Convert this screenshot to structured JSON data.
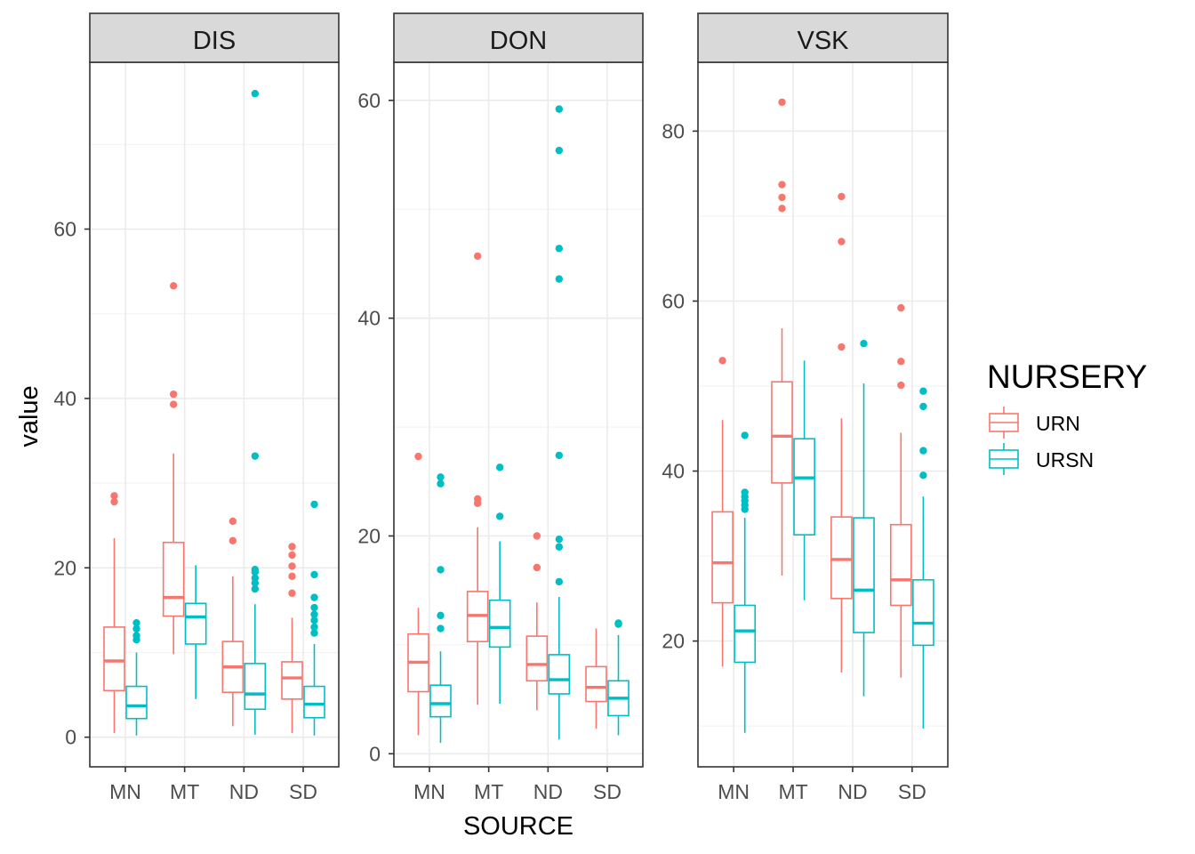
{
  "chart_data": {
    "type": "boxplot",
    "xlabel": "SOURCE",
    "ylabel": "value",
    "categories": [
      "MN",
      "MT",
      "ND",
      "SD"
    ],
    "legend": {
      "title": "NURSERY",
      "position": "right",
      "entries": [
        {
          "name": "URN",
          "color": "#F8766D"
        },
        {
          "name": "URSN",
          "color": "#00BFC4"
        }
      ]
    },
    "grid": true,
    "panels": [
      {
        "title": "DIS",
        "ylim": [
          -3.5,
          79.7
        ],
        "yticks": [
          0,
          20,
          40,
          60
        ],
        "yticklabels": [
          "0",
          "20",
          "40",
          "60"
        ],
        "boxes": [
          {
            "category": "MN",
            "group": "URN",
            "min": 0.5,
            "q1": 5.5,
            "median": 9.0,
            "q3": 13.0,
            "max": 23.5,
            "outliers": [
              27.8,
              28.5
            ]
          },
          {
            "category": "MN",
            "group": "URSN",
            "min": 0.2,
            "q1": 2.2,
            "median": 3.7,
            "q3": 6.0,
            "max": 10.0,
            "outliers": [
              11.5,
              12.0,
              12.8,
              13.5
            ]
          },
          {
            "category": "MT",
            "group": "URN",
            "min": 9.8,
            "q1": 14.3,
            "median": 16.5,
            "q3": 23.0,
            "max": 33.5,
            "outliers": [
              39.3,
              40.5,
              53.3
            ]
          },
          {
            "category": "MT",
            "group": "URSN",
            "min": 4.5,
            "q1": 11.0,
            "median": 14.2,
            "q3": 15.8,
            "max": 20.3,
            "outliers": []
          },
          {
            "category": "ND",
            "group": "URN",
            "min": 1.3,
            "q1": 5.3,
            "median": 8.3,
            "q3": 11.3,
            "max": 19.0,
            "outliers": [
              23.2,
              25.5
            ]
          },
          {
            "category": "ND",
            "group": "URSN",
            "min": 0.3,
            "q1": 3.3,
            "median": 5.1,
            "q3": 8.7,
            "max": 15.7,
            "outliers": [
              17.5,
              18.2,
              18.8,
              19.5,
              19.8,
              33.2,
              76.0
            ]
          },
          {
            "category": "SD",
            "group": "URN",
            "min": 0.5,
            "q1": 4.5,
            "median": 7.0,
            "q3": 8.9,
            "max": 14.1,
            "outliers": [
              17.0,
              19.0,
              20.2,
              21.5,
              22.5
            ]
          },
          {
            "category": "SD",
            "group": "URSN",
            "min": 0.2,
            "q1": 2.3,
            "median": 3.9,
            "q3": 6.0,
            "max": 11.0,
            "outliers": [
              12.3,
              13.0,
              13.8,
              14.5,
              15.3,
              16.5,
              19.2,
              27.5
            ]
          }
        ]
      },
      {
        "title": "DON",
        "ylim": [
          -1.2,
          63.5
        ],
        "yticks": [
          0,
          20,
          40,
          60
        ],
        "yticklabels": [
          "0",
          "20",
          "40",
          "60"
        ],
        "boxes": [
          {
            "category": "MN",
            "group": "URN",
            "min": 1.7,
            "q1": 5.7,
            "median": 8.4,
            "q3": 11.0,
            "max": 13.4,
            "outliers": [
              27.3
            ]
          },
          {
            "category": "MN",
            "group": "URSN",
            "min": 1.0,
            "q1": 3.4,
            "median": 4.6,
            "q3": 6.3,
            "max": 9.4,
            "outliers": [
              11.5,
              12.7,
              16.9,
              24.8,
              25.4
            ]
          },
          {
            "category": "MT",
            "group": "URN",
            "min": 4.5,
            "q1": 10.3,
            "median": 12.7,
            "q3": 14.9,
            "max": 20.8,
            "outliers": [
              23.0,
              23.4,
              45.7
            ]
          },
          {
            "category": "MT",
            "group": "URSN",
            "min": 4.6,
            "q1": 9.8,
            "median": 11.6,
            "q3": 14.1,
            "max": 19.5,
            "outliers": [
              21.8,
              26.3
            ]
          },
          {
            "category": "ND",
            "group": "URN",
            "min": 4.0,
            "q1": 6.7,
            "median": 8.2,
            "q3": 10.8,
            "max": 13.9,
            "outliers": [
              17.1,
              20.0
            ]
          },
          {
            "category": "ND",
            "group": "URSN",
            "min": 1.3,
            "q1": 5.5,
            "median": 6.8,
            "q3": 9.1,
            "max": 14.4,
            "outliers": [
              15.8,
              19.0,
              19.7,
              27.4,
              43.6,
              46.4,
              55.4,
              59.2
            ]
          },
          {
            "category": "SD",
            "group": "URN",
            "min": 2.3,
            "q1": 4.8,
            "median": 6.1,
            "q3": 8.0,
            "max": 11.5,
            "outliers": []
          },
          {
            "category": "SD",
            "group": "URSN",
            "min": 1.7,
            "q1": 3.5,
            "median": 5.1,
            "q3": 6.7,
            "max": 10.9,
            "outliers": [
              11.9,
              12.0
            ]
          }
        ]
      },
      {
        "title": "VSK",
        "ylim": [
          5.2,
          88.1
        ],
        "yticks": [
          20,
          40,
          60,
          80
        ],
        "yticklabels": [
          "20",
          "40",
          "60",
          "80"
        ],
        "boxes": [
          {
            "category": "MN",
            "group": "URN",
            "min": 17.0,
            "q1": 24.5,
            "median": 29.2,
            "q3": 35.2,
            "max": 46.0,
            "outliers": [
              53.0
            ]
          },
          {
            "category": "MN",
            "group": "URSN",
            "min": 9.2,
            "q1": 17.5,
            "median": 21.2,
            "q3": 24.2,
            "max": 34.5,
            "outliers": [
              35.5,
              36.0,
              36.5,
              37.0,
              37.5,
              44.2
            ]
          },
          {
            "category": "MT",
            "group": "URN",
            "min": 27.7,
            "q1": 38.6,
            "median": 44.1,
            "q3": 50.5,
            "max": 56.8,
            "outliers": [
              70.9,
              72.2,
              73.7,
              83.4
            ]
          },
          {
            "category": "MT",
            "group": "URSN",
            "min": 24.8,
            "q1": 32.5,
            "median": 39.2,
            "q3": 43.8,
            "max": 53.0,
            "outliers": []
          },
          {
            "category": "ND",
            "group": "URN",
            "min": 16.3,
            "q1": 25.0,
            "median": 29.6,
            "q3": 34.6,
            "max": 46.2,
            "outliers": [
              54.6,
              67.0,
              72.3
            ]
          },
          {
            "category": "ND",
            "group": "URSN",
            "min": 13.5,
            "q1": 21.0,
            "median": 26.0,
            "q3": 34.5,
            "max": 50.3,
            "outliers": [
              55.0
            ]
          },
          {
            "category": "SD",
            "group": "URN",
            "min": 15.7,
            "q1": 24.2,
            "median": 27.2,
            "q3": 33.7,
            "max": 44.5,
            "outliers": [
              50.1,
              52.9,
              59.2
            ]
          },
          {
            "category": "SD",
            "group": "URSN",
            "min": 9.7,
            "q1": 19.5,
            "median": 22.1,
            "q3": 27.2,
            "max": 37.0,
            "outliers": [
              39.5,
              42.4,
              47.6,
              49.4
            ]
          }
        ]
      }
    ]
  }
}
